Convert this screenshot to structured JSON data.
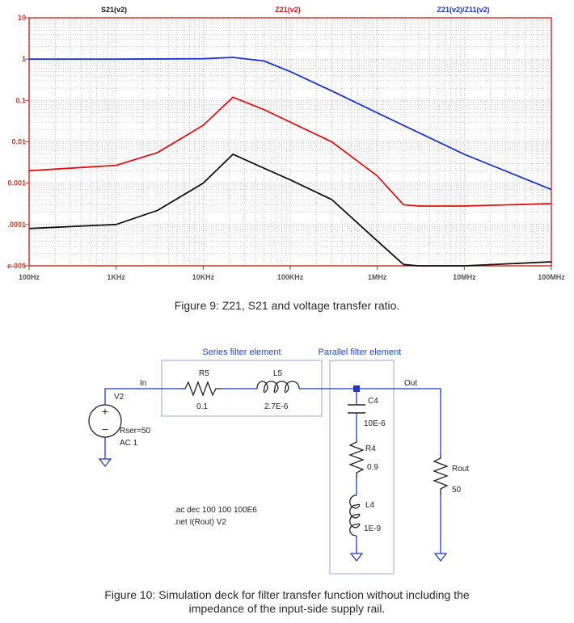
{
  "figure9": {
    "caption": "Figure 9: Z21, S21 and voltage transfer ratio.",
    "chart_data": {
      "type": "line",
      "x_scale": "log",
      "y_scale": "log",
      "xlim": [
        100,
        100000000
      ],
      "ylim": [
        1e-05,
        10
      ],
      "grid": true,
      "x_ticks": [
        {
          "v": 100,
          "label": "100Hz"
        },
        {
          "v": 1000,
          "label": "1KHz"
        },
        {
          "v": 10000,
          "label": "10KHz"
        },
        {
          "v": 100000,
          "label": "100KHz"
        },
        {
          "v": 1000000,
          "label": "1MHz"
        },
        {
          "v": 10000000,
          "label": "10MHz"
        },
        {
          "v": 100000000,
          "label": "100MHz"
        }
      ],
      "y_ticks": [
        {
          "v": 10,
          "label": "10"
        },
        {
          "v": 1,
          "label": "1"
        },
        {
          "v": 0.1,
          "label": "0.1"
        },
        {
          "v": 0.01,
          "label": "0.01"
        },
        {
          "v": 0.001,
          "label": "0.001"
        },
        {
          "v": 0.0001,
          "label": ".0001"
        },
        {
          "v": 1e-05,
          "label": "e-005"
        }
      ],
      "series": [
        {
          "name": "S21(v2)",
          "color": "#111111",
          "x": [
            100,
            1000,
            3000,
            10000,
            22000,
            50000,
            100000,
            300000,
            1000000,
            2000000,
            3000000,
            10000000,
            100000000
          ],
          "y": [
            8e-05,
            0.0001,
            0.00022,
            0.001,
            0.005,
            0.0023,
            0.0012,
            0.0004,
            4e-05,
            1.08e-05,
            1e-05,
            1e-05,
            1.25e-05
          ]
        },
        {
          "name": "Z21(v2)",
          "color": "#dd1111",
          "x": [
            100,
            1000,
            3000,
            10000,
            22000,
            50000,
            100000,
            300000,
            1000000,
            2000000,
            3000000,
            10000000,
            100000000
          ],
          "y": [
            0.002,
            0.0027,
            0.0055,
            0.025,
            0.12,
            0.06,
            0.03,
            0.01,
            0.0015,
            0.0003,
            0.00028,
            0.00028,
            0.00032
          ]
        },
        {
          "name": "Z21(v2)/Z11(v2)",
          "color": "#1a33cc",
          "x": [
            100,
            1000,
            10000,
            22000,
            50000,
            100000,
            300000,
            1000000,
            10000000,
            100000000
          ],
          "y": [
            1,
            1,
            1.02,
            1.1,
            0.9,
            0.5,
            0.17,
            0.05,
            0.005,
            0.0007
          ]
        }
      ]
    }
  },
  "figure10": {
    "caption_line1": "Figure 10: Simulation deck for filter transfer function without including the",
    "caption_line2": "impedance of the input-side supply rail.",
    "series_box_label": "Series filter element",
    "parallel_box_label": "Parallel filter element",
    "net_in": "In",
    "net_out": "Out",
    "source": {
      "name": "V2",
      "param1": "Rser=50",
      "param2": "AC 1"
    },
    "r5": {
      "name": "R5",
      "value": "0.1"
    },
    "l5": {
      "name": "L5",
      "value": "2.7E-6"
    },
    "c4": {
      "name": "C4",
      "value": "10E-6"
    },
    "r4": {
      "name": "R4",
      "value": "0.9"
    },
    "l4": {
      "name": "L4",
      "value": "1E-9"
    },
    "rout": {
      "name": "Rout",
      "value": "50"
    },
    "directive1": ".ac dec 100 100 100E6",
    "directive2": ".net I(Rout) V2"
  }
}
